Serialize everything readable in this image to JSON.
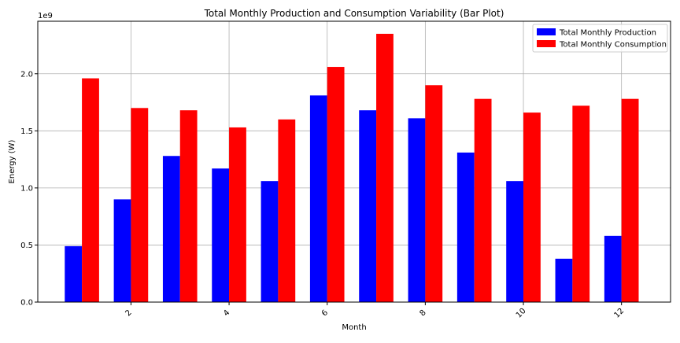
{
  "chart_data": {
    "type": "bar",
    "title": "Total Monthly Production and Consumption Variability (Bar Plot)",
    "xlabel": "Month",
    "ylabel": "Energy (W)",
    "y_offset_label": "1e9",
    "x": [
      1,
      2,
      3,
      4,
      5,
      6,
      7,
      8,
      9,
      10,
      11,
      12
    ],
    "xticks": [
      2,
      4,
      6,
      8,
      10,
      12
    ],
    "xlim": [
      0.1,
      13.0
    ],
    "ylim": [
      0,
      2.46
    ],
    "yticks": [
      0.0,
      0.5,
      1.0,
      1.5,
      2.0
    ],
    "ytick_labels": [
      "0.0",
      "0.5",
      "1.0",
      "1.5",
      "2.0"
    ],
    "y_unit_scale": "1e9",
    "grid": true,
    "legend_position": "top-right",
    "series": [
      {
        "name": "Total Monthly Production",
        "color": "#0000ff",
        "values": [
          0.49,
          0.9,
          1.28,
          1.17,
          1.06,
          1.81,
          1.68,
          1.61,
          1.31,
          1.06,
          0.38,
          0.58
        ]
      },
      {
        "name": "Total Monthly Consumption",
        "color": "#ff0000",
        "values": [
          1.96,
          1.7,
          1.68,
          1.53,
          1.6,
          2.06,
          2.35,
          1.9,
          1.78,
          1.66,
          1.72,
          1.78
        ]
      }
    ]
  }
}
